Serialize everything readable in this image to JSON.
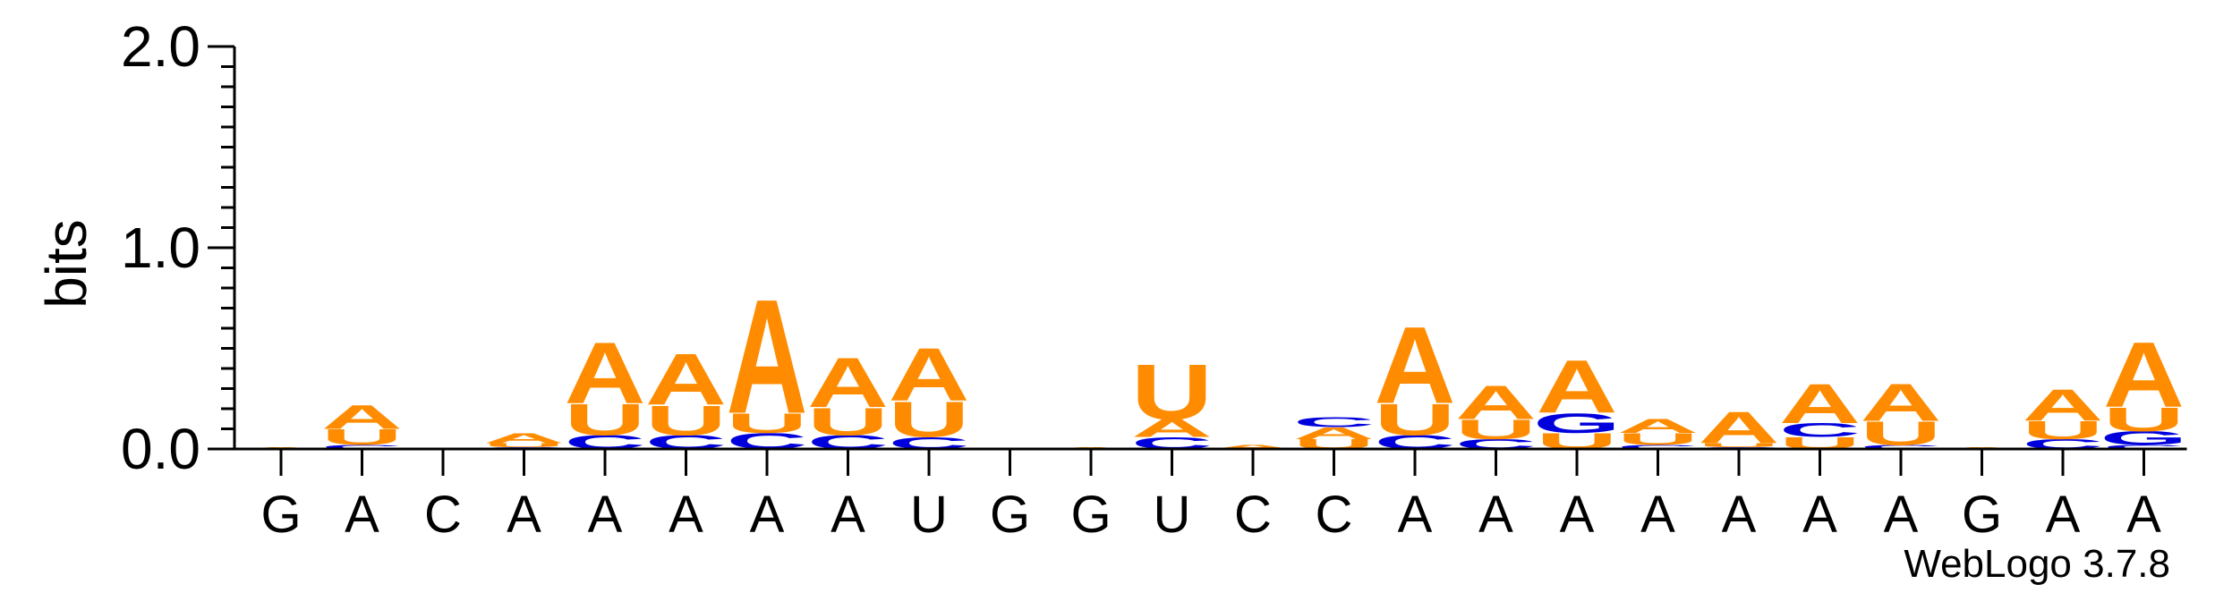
{
  "chart_data": {
    "type": "sequence-logo",
    "ylabel": "bits",
    "ylim": [
      0,
      2.0
    ],
    "yticks": [
      "0.0",
      "1.0",
      "2.0"
    ],
    "credit": "WebLogo 3.7.8",
    "colors": {
      "A": "#FF8C00",
      "U": "#FF8C00",
      "C": "#0000DD",
      "G": "#0000DD"
    },
    "positions": [
      {
        "label": "G",
        "stack": [
          {
            "base": "A",
            "bits": 0.01
          }
        ]
      },
      {
        "label": "A",
        "stack": [
          {
            "base": "C",
            "bits": 0.02
          },
          {
            "base": "U",
            "bits": 0.08
          },
          {
            "base": "A",
            "bits": 0.12
          }
        ]
      },
      {
        "label": "C",
        "stack": []
      },
      {
        "label": "A",
        "stack": [
          {
            "base": "C",
            "bits": 0.01
          },
          {
            "base": "U",
            "bits": 0.02
          },
          {
            "base": "A",
            "bits": 0.05
          }
        ]
      },
      {
        "label": "A",
        "stack": [
          {
            "base": "C",
            "bits": 0.07
          },
          {
            "base": "U",
            "bits": 0.16
          },
          {
            "base": "A",
            "bits": 0.31
          }
        ]
      },
      {
        "label": "A",
        "stack": [
          {
            "base": "C",
            "bits": 0.07
          },
          {
            "base": "U",
            "bits": 0.15
          },
          {
            "base": "A",
            "bits": 0.26
          }
        ]
      },
      {
        "label": "A",
        "stack": [
          {
            "base": "C",
            "bits": 0.08
          },
          {
            "base": "U",
            "bits": 0.1
          },
          {
            "base": "A",
            "bits": 0.58
          }
        ]
      },
      {
        "label": "A",
        "stack": [
          {
            "base": "C",
            "bits": 0.07
          },
          {
            "base": "U",
            "bits": 0.14
          },
          {
            "base": "A",
            "bits": 0.25
          }
        ]
      },
      {
        "label": "U",
        "stack": [
          {
            "base": "C",
            "bits": 0.06
          },
          {
            "base": "U",
            "bits": 0.18
          },
          {
            "base": "A",
            "bits": 0.27
          }
        ]
      },
      {
        "label": "G",
        "stack": []
      },
      {
        "label": "G",
        "stack": [
          {
            "base": "A",
            "bits": 0.01
          }
        ]
      },
      {
        "label": "U",
        "stack": [
          {
            "base": "C",
            "bits": 0.06
          },
          {
            "base": "A",
            "bits": 0.09
          },
          {
            "base": "U",
            "bits": 0.28
          }
        ]
      },
      {
        "label": "C",
        "stack": [
          {
            "base": "A",
            "bits": 0.02
          }
        ]
      },
      {
        "label": "C",
        "stack": [
          {
            "base": "U",
            "bits": 0.05
          },
          {
            "base": "A",
            "bits": 0.06
          },
          {
            "base": "C",
            "bits": 0.05
          }
        ]
      },
      {
        "label": "A",
        "stack": [
          {
            "base": "C",
            "bits": 0.07
          },
          {
            "base": "U",
            "bits": 0.16
          },
          {
            "base": "A",
            "bits": 0.39
          }
        ]
      },
      {
        "label": "A",
        "stack": [
          {
            "base": "C",
            "bits": 0.05
          },
          {
            "base": "U",
            "bits": 0.1
          },
          {
            "base": "A",
            "bits": 0.17
          }
        ]
      },
      {
        "label": "A",
        "stack": [
          {
            "base": "U",
            "bits": 0.08
          },
          {
            "base": "G",
            "bits": 0.1
          },
          {
            "base": "A",
            "bits": 0.27
          }
        ]
      },
      {
        "label": "A",
        "stack": [
          {
            "base": "C",
            "bits": 0.02
          },
          {
            "base": "U",
            "bits": 0.06
          },
          {
            "base": "A",
            "bits": 0.07
          }
        ]
      },
      {
        "label": "A",
        "stack": [
          {
            "base": "C",
            "bits": 0.01
          },
          {
            "base": "U",
            "bits": 0.02
          },
          {
            "base": "A",
            "bits": 0.16
          }
        ]
      },
      {
        "label": "A",
        "stack": [
          {
            "base": "U",
            "bits": 0.06
          },
          {
            "base": "C",
            "bits": 0.07
          },
          {
            "base": "A",
            "bits": 0.2
          }
        ]
      },
      {
        "label": "A",
        "stack": [
          {
            "base": "C",
            "bits": 0.02
          },
          {
            "base": "U",
            "bits": 0.12
          },
          {
            "base": "A",
            "bits": 0.19
          }
        ]
      },
      {
        "label": "G",
        "stack": [
          {
            "base": "A",
            "bits": 0.01
          }
        ]
      },
      {
        "label": "A",
        "stack": [
          {
            "base": "C",
            "bits": 0.05
          },
          {
            "base": "U",
            "bits": 0.09
          },
          {
            "base": "A",
            "bits": 0.16
          }
        ]
      },
      {
        "label": "A",
        "stack": [
          {
            "base": "C",
            "bits": 0.02
          },
          {
            "base": "G",
            "bits": 0.07
          },
          {
            "base": "U",
            "bits": 0.12
          },
          {
            "base": "A",
            "bits": 0.33
          }
        ]
      }
    ]
  }
}
